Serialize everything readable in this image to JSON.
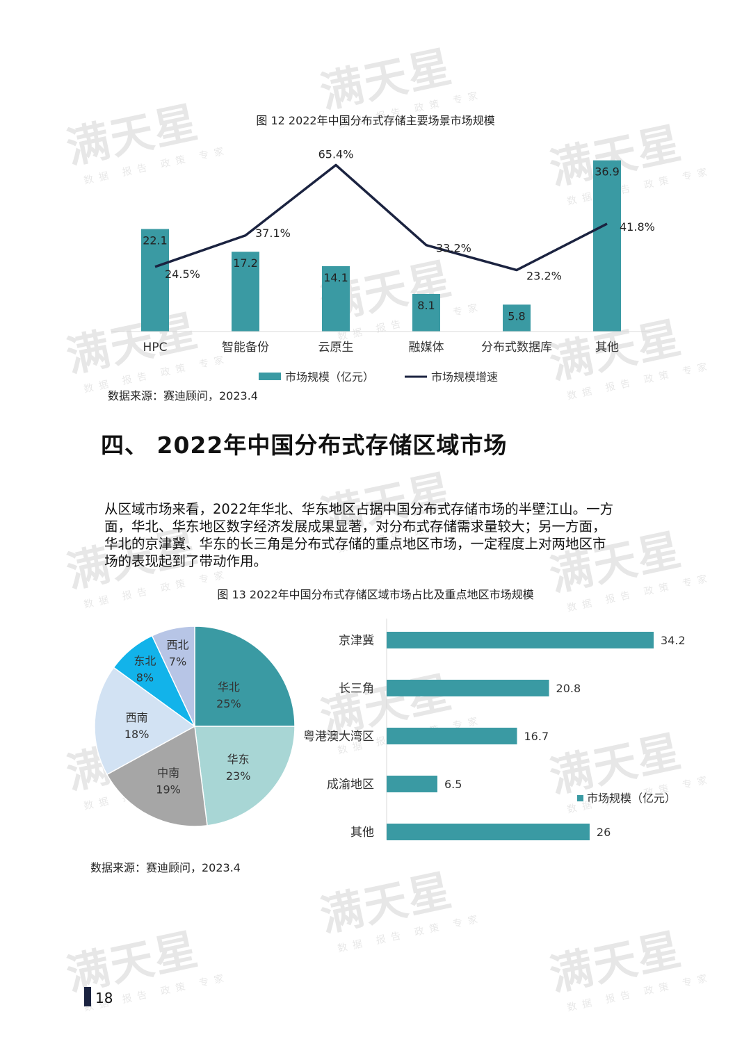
{
  "watermark": {
    "logo": "满天星",
    "tagline": "数据 报告 政策 专家"
  },
  "figure12": {
    "title": "图 12 2022年中国分布式存储主要场景市场规模",
    "source": "数据来源：赛迪顾问，2023.4"
  },
  "section": {
    "title": "四、 2022年中国分布式存储区域市场"
  },
  "paragraph": [
    "从区域市场来看，2022年华北、华东地区占据中国分布式存储市场的半壁江山。一方",
    "面，华北、华东地区数字经济发展成果显著，对分布式存储需求量较大；另一方面，",
    "华北的京津冀、华东的长三角是分布式存储的重点地区市场，一定程度上对两地区市",
    "场的表现起到了带动作用。"
  ],
  "figure13": {
    "title": "图 13 2022年中国分布式存储区域市场占比及重点地区市场规模",
    "source": "数据来源：赛迪顾问，2023.4"
  },
  "page_number": "18",
  "colors": {
    "teal": "#3a9aa3",
    "line": "#1b2340"
  },
  "chart_data": [
    {
      "type": "bar",
      "categories": [
        "HPC",
        "智能备份",
        "云原生",
        "融媒体",
        "分布式数据库",
        "其他"
      ],
      "series": [
        {
          "name": "市场规模（亿元）",
          "kind": "bar",
          "values": [
            22.1,
            17.2,
            14.1,
            8.1,
            5.8,
            36.9
          ],
          "labels": [
            "22.1",
            "17.2",
            "14.1",
            "8.1",
            "5.8",
            "36.9"
          ]
        },
        {
          "name": "市场规模增速",
          "kind": "line",
          "values": [
            24.5,
            37.1,
            65.4,
            33.2,
            23.2,
            41.8
          ],
          "labels": [
            "24.5%",
            "37.1%",
            "65.4%",
            "33.2%",
            "23.2%",
            "41.8%"
          ]
        }
      ],
      "legend": "bottom"
    },
    {
      "type": "pie",
      "slices": [
        {
          "label": "华北",
          "value": 25,
          "text": "25%",
          "color": "#3a9aa3"
        },
        {
          "label": "华东",
          "value": 23,
          "text": "23%",
          "color": "#a8d6d5"
        },
        {
          "label": "中南",
          "value": 19,
          "text": "19%",
          "color": "#a6a6a6"
        },
        {
          "label": "西南",
          "value": 18,
          "text": "18%",
          "color": "#d2e2f3"
        },
        {
          "label": "东北",
          "value": 8,
          "text": "8%",
          "color": "#12b3ea"
        },
        {
          "label": "西北",
          "value": 7,
          "text": "7%",
          "color": "#b7c5e6"
        }
      ]
    },
    {
      "type": "bar",
      "orientation": "horizontal",
      "categories": [
        "京津冀",
        "长三角",
        "粤港澳大湾区",
        "成渝地区",
        "其他"
      ],
      "series": [
        {
          "name": "市场规模（亿元）",
          "values": [
            34.2,
            20.8,
            16.7,
            6.5,
            26
          ],
          "labels": [
            "34.2",
            "20.8",
            "16.7",
            "6.5",
            "26"
          ]
        }
      ],
      "legend": "right"
    }
  ]
}
